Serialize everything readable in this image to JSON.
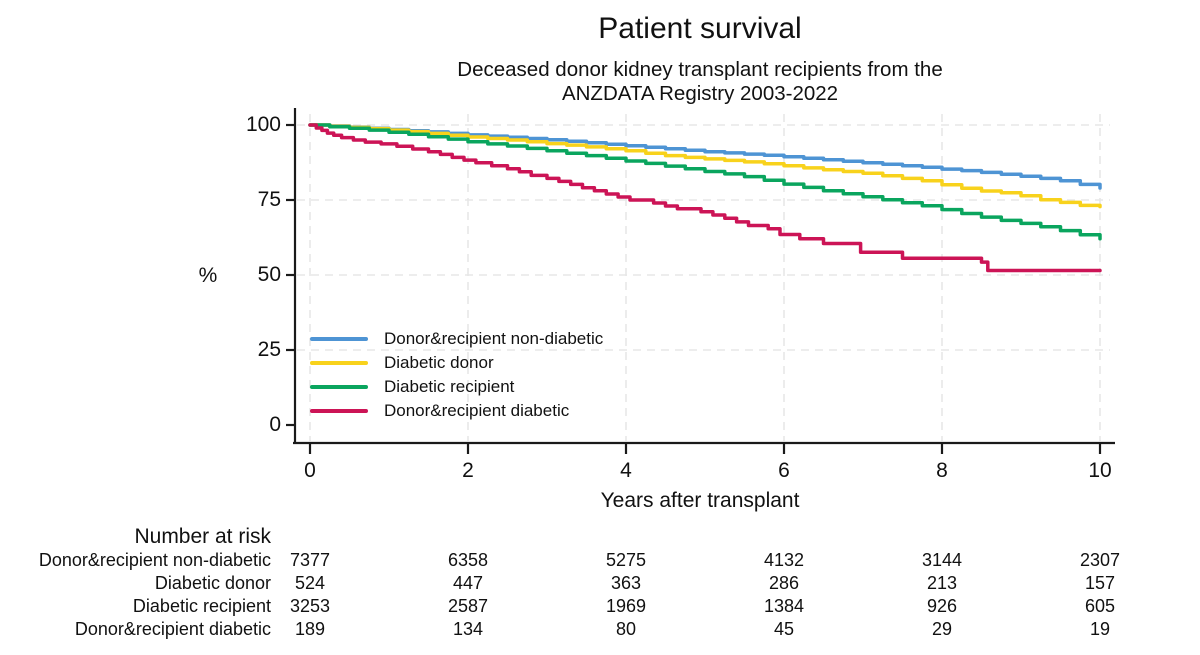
{
  "header": {
    "title": "Patient survival",
    "subtitle_line1": "Deceased donor kidney transplant recipients from the",
    "subtitle_line2": "ANZDATA Registry 2003-2022"
  },
  "chart_data": {
    "type": "line",
    "step": true,
    "title": "Patient survival",
    "subtitle": "Deceased donor kidney transplant recipients from the ANZDATA Registry 2003-2022",
    "xlabel": "Years after transplant",
    "ylabel": "%",
    "xlim": [
      0,
      10
    ],
    "ylim": [
      0,
      100
    ],
    "x_ticks": [
      0,
      2,
      4,
      6,
      8,
      10
    ],
    "y_ticks": [
      0,
      25,
      50,
      75,
      100
    ],
    "grid": "dashed",
    "grid_color": "#e7e7e7",
    "axis_color": "#1a1a1a",
    "legend_position": "inside lower-left",
    "series": [
      {
        "name": "Donor&recipient non-diabetic",
        "color": "#4e94d4",
        "points": [
          [
            0,
            100
          ],
          [
            0.25,
            99.7
          ],
          [
            0.5,
            99.3
          ],
          [
            0.75,
            98.9
          ],
          [
            1,
            98.5
          ],
          [
            1.25,
            98.1
          ],
          [
            1.5,
            97.7
          ],
          [
            1.75,
            97.2
          ],
          [
            2,
            96.7
          ],
          [
            2.25,
            96.3
          ],
          [
            2.5,
            95.9
          ],
          [
            2.75,
            95.5
          ],
          [
            3,
            95.1
          ],
          [
            3.25,
            94.6
          ],
          [
            3.5,
            94.1
          ],
          [
            3.75,
            93.6
          ],
          [
            4,
            93.1
          ],
          [
            4.25,
            92.6
          ],
          [
            4.5,
            92.1
          ],
          [
            4.75,
            91.6
          ],
          [
            5,
            91.1
          ],
          [
            5.25,
            90.7
          ],
          [
            5.5,
            90.3
          ],
          [
            5.75,
            89.9
          ],
          [
            6,
            89.4
          ],
          [
            6.25,
            88.9
          ],
          [
            6.5,
            88.4
          ],
          [
            6.75,
            87.9
          ],
          [
            7,
            87.4
          ],
          [
            7.25,
            86.9
          ],
          [
            7.5,
            86.4
          ],
          [
            7.75,
            85.9
          ],
          [
            8,
            85.3
          ],
          [
            8.25,
            84.8
          ],
          [
            8.5,
            84.2
          ],
          [
            8.75,
            83.6
          ],
          [
            9,
            82.9
          ],
          [
            9.25,
            82.2
          ],
          [
            9.5,
            81.4
          ],
          [
            9.75,
            80.2
          ],
          [
            10,
            79
          ]
        ]
      },
      {
        "name": "Diabetic donor",
        "color": "#f8d21c",
        "points": [
          [
            0,
            100
          ],
          [
            0.25,
            99.6
          ],
          [
            0.5,
            99.2
          ],
          [
            0.75,
            98.8
          ],
          [
            1,
            98.3
          ],
          [
            1.25,
            97.8
          ],
          [
            1.5,
            97.2
          ],
          [
            1.75,
            96.6
          ],
          [
            2,
            96
          ],
          [
            2.25,
            95.5
          ],
          [
            2.5,
            95
          ],
          [
            2.75,
            94.4
          ],
          [
            3,
            93.8
          ],
          [
            3.25,
            93.3
          ],
          [
            3.5,
            92.7
          ],
          [
            3.75,
            92.1
          ],
          [
            4,
            91.4
          ],
          [
            4.25,
            90.6
          ],
          [
            4.5,
            89.8
          ],
          [
            4.75,
            89.2
          ],
          [
            5,
            88.7
          ],
          [
            5.25,
            88.2
          ],
          [
            5.5,
            87.7
          ],
          [
            5.75,
            87.1
          ],
          [
            6,
            86.4
          ],
          [
            6.25,
            85.7
          ],
          [
            6.5,
            85.1
          ],
          [
            6.75,
            84.5
          ],
          [
            7,
            83.9
          ],
          [
            7.25,
            83.1
          ],
          [
            7.5,
            82.2
          ],
          [
            7.75,
            81.4
          ],
          [
            8,
            80.1
          ],
          [
            8.25,
            78.9
          ],
          [
            8.5,
            78
          ],
          [
            8.75,
            77.4
          ],
          [
            9,
            76.4
          ],
          [
            9.25,
            75.1
          ],
          [
            9.5,
            74.2
          ],
          [
            9.75,
            73.2
          ],
          [
            10,
            72.8
          ]
        ]
      },
      {
        "name": "Diabetic recipient",
        "color": "#0aa55e",
        "points": [
          [
            0,
            100
          ],
          [
            0.25,
            99.4
          ],
          [
            0.5,
            98.9
          ],
          [
            0.75,
            98.3
          ],
          [
            1,
            97.6
          ],
          [
            1.25,
            96.9
          ],
          [
            1.5,
            96.1
          ],
          [
            1.75,
            95.3
          ],
          [
            2,
            94.4
          ],
          [
            2.25,
            93.7
          ],
          [
            2.5,
            93
          ],
          [
            2.75,
            92.2
          ],
          [
            3,
            91.4
          ],
          [
            3.25,
            90.6
          ],
          [
            3.5,
            89.8
          ],
          [
            3.75,
            88.9
          ],
          [
            4,
            88
          ],
          [
            4.25,
            87.2
          ],
          [
            4.5,
            86.3
          ],
          [
            4.75,
            85.4
          ],
          [
            5,
            84.5
          ],
          [
            5.25,
            83.7
          ],
          [
            5.5,
            82.8
          ],
          [
            5.75,
            81.6
          ],
          [
            6,
            80.3
          ],
          [
            6.25,
            79.2
          ],
          [
            6.5,
            78.1
          ],
          [
            6.75,
            77.1
          ],
          [
            7,
            76.1
          ],
          [
            7.25,
            75.1
          ],
          [
            7.5,
            74.1
          ],
          [
            7.75,
            73.1
          ],
          [
            8,
            71.8
          ],
          [
            8.25,
            70.5
          ],
          [
            8.5,
            69.3
          ],
          [
            8.75,
            68.2
          ],
          [
            9,
            67.2
          ],
          [
            9.25,
            66.1
          ],
          [
            9.5,
            64.8
          ],
          [
            9.75,
            63.4
          ],
          [
            10,
            62.1
          ]
        ]
      },
      {
        "name": "Donor&recipient diabetic",
        "color": "#cc1456",
        "points": [
          [
            0,
            100
          ],
          [
            0.08,
            99
          ],
          [
            0.15,
            98.2
          ],
          [
            0.22,
            97.3
          ],
          [
            0.3,
            96.6
          ],
          [
            0.4,
            95.8
          ],
          [
            0.55,
            95
          ],
          [
            0.7,
            94.3
          ],
          [
            0.9,
            93.7
          ],
          [
            1.1,
            92.9
          ],
          [
            1.3,
            92
          ],
          [
            1.5,
            91.1
          ],
          [
            1.65,
            90.2
          ],
          [
            1.8,
            89.2
          ],
          [
            1.95,
            88.3
          ],
          [
            2.1,
            87.4
          ],
          [
            2.3,
            86.4
          ],
          [
            2.5,
            85.4
          ],
          [
            2.65,
            84.4
          ],
          [
            2.8,
            83.2
          ],
          [
            3,
            82.2
          ],
          [
            3.15,
            81.2
          ],
          [
            3.3,
            80.2
          ],
          [
            3.45,
            79.1
          ],
          [
            3.6,
            78.1
          ],
          [
            3.75,
            77
          ],
          [
            3.9,
            76
          ],
          [
            4.05,
            75
          ],
          [
            4.35,
            74
          ],
          [
            4.5,
            73
          ],
          [
            4.65,
            72.1
          ],
          [
            4.95,
            71.1
          ],
          [
            5.1,
            70
          ],
          [
            5.25,
            68.9
          ],
          [
            5.4,
            67.7
          ],
          [
            5.55,
            66.5
          ],
          [
            5.8,
            65.4
          ],
          [
            5.95,
            63.5
          ],
          [
            6.2,
            62.1
          ],
          [
            6.5,
            60.5
          ],
          [
            6.97,
            57.6
          ],
          [
            7.5,
            55.6
          ],
          [
            8.5,
            54.3
          ],
          [
            8.58,
            51.5
          ],
          [
            10,
            51.5
          ]
        ]
      }
    ]
  },
  "axes": {
    "y_label": "%",
    "x_label": "Years after transplant",
    "y_tick_labels": [
      "0",
      "25",
      "50",
      "75",
      "100"
    ],
    "x_tick_labels": [
      "0",
      "2",
      "4",
      "6",
      "8",
      "10"
    ]
  },
  "legend": {
    "items": [
      {
        "label": "Donor&recipient non-diabetic",
        "color": "#4e94d4"
      },
      {
        "label": "Diabetic donor",
        "color": "#f8d21c"
      },
      {
        "label": "Diabetic recipient",
        "color": "#0aa55e"
      },
      {
        "label": "Donor&recipient diabetic",
        "color": "#cc1456"
      }
    ]
  },
  "risk_table": {
    "header": "Number at risk",
    "times": [
      0,
      2,
      4,
      6,
      8,
      10
    ],
    "rows": [
      {
        "label": "Donor&recipient non-diabetic",
        "values": [
          "7377",
          "6358",
          "5275",
          "4132",
          "3144",
          "2307"
        ]
      },
      {
        "label": "Diabetic donor",
        "values": [
          "524",
          "447",
          "363",
          "286",
          "213",
          "157"
        ]
      },
      {
        "label": "Diabetic recipient",
        "values": [
          "3253",
          "2587",
          "1969",
          "1384",
          "926",
          "605"
        ]
      },
      {
        "label": "Donor&recipient diabetic",
        "values": [
          "189",
          "134",
          "80",
          "45",
          "29",
          "19"
        ]
      }
    ]
  }
}
